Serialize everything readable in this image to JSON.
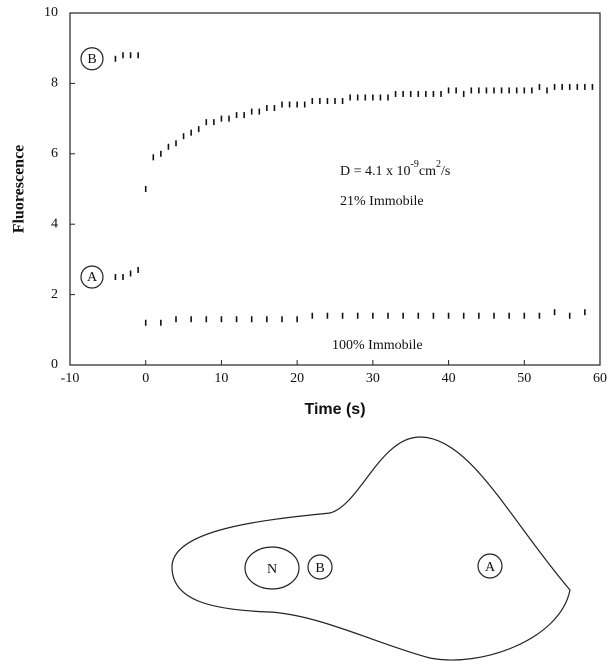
{
  "chart_data": {
    "type": "scatter",
    "x_label": "Time (s)",
    "y_label": "Fluorescence",
    "xlim": [
      -10,
      60
    ],
    "ylim": [
      0,
      10
    ],
    "xticks": [
      -10,
      0,
      10,
      20,
      30,
      40,
      50,
      60
    ],
    "yticks": [
      0,
      2,
      4,
      6,
      8,
      10
    ],
    "color": "#111",
    "series": [
      {
        "name": "B",
        "x": [
          -4,
          -3,
          -2,
          -1,
          0,
          1,
          2,
          3,
          4,
          5,
          6,
          7,
          8,
          9,
          10,
          11,
          12,
          13,
          14,
          15,
          16,
          17,
          18,
          19,
          20,
          21,
          22,
          23,
          24,
          25,
          26,
          27,
          28,
          29,
          30,
          31,
          32,
          33,
          34,
          35,
          36,
          37,
          38,
          39,
          40,
          41,
          42,
          43,
          44,
          45,
          46,
          47,
          48,
          49,
          50,
          51,
          52,
          53,
          54,
          55,
          56,
          57,
          58,
          59
        ],
        "values": [
          8.7,
          8.8,
          8.8,
          8.8,
          5.0,
          5.9,
          6.0,
          6.2,
          6.3,
          6.5,
          6.6,
          6.7,
          6.9,
          6.9,
          7.0,
          7.0,
          7.1,
          7.1,
          7.2,
          7.2,
          7.3,
          7.3,
          7.4,
          7.4,
          7.4,
          7.4,
          7.5,
          7.5,
          7.5,
          7.5,
          7.5,
          7.6,
          7.6,
          7.6,
          7.6,
          7.6,
          7.6,
          7.7,
          7.7,
          7.7,
          7.7,
          7.7,
          7.7,
          7.7,
          7.8,
          7.8,
          7.7,
          7.8,
          7.8,
          7.8,
          7.8,
          7.8,
          7.8,
          7.8,
          7.8,
          7.8,
          7.9,
          7.8,
          7.9,
          7.9,
          7.9,
          7.9,
          7.9,
          7.9
        ]
      },
      {
        "name": "A",
        "x": [
          -4,
          -3,
          -2,
          -1,
          0,
          2,
          4,
          6,
          8,
          10,
          12,
          14,
          16,
          18,
          20,
          22,
          24,
          26,
          28,
          30,
          32,
          34,
          36,
          38,
          40,
          42,
          44,
          46,
          48,
          50,
          52,
          54,
          56,
          58
        ],
        "values": [
          2.5,
          2.5,
          2.6,
          2.7,
          1.2,
          1.2,
          1.3,
          1.3,
          1.3,
          1.3,
          1.3,
          1.3,
          1.3,
          1.3,
          1.3,
          1.4,
          1.4,
          1.4,
          1.4,
          1.4,
          1.4,
          1.4,
          1.4,
          1.4,
          1.4,
          1.4,
          1.4,
          1.4,
          1.4,
          1.4,
          1.4,
          1.5,
          1.4,
          1.5
        ]
      }
    ],
    "annotations": [
      {
        "parts": [
          "D = 4.1 x 10",
          "-9",
          "cm",
          "2",
          "/s"
        ]
      },
      {
        "text": "21% Immobile"
      },
      {
        "text": "100% Immobile"
      }
    ]
  },
  "diagram": {
    "labels": [
      "N",
      "B",
      "A"
    ]
  }
}
